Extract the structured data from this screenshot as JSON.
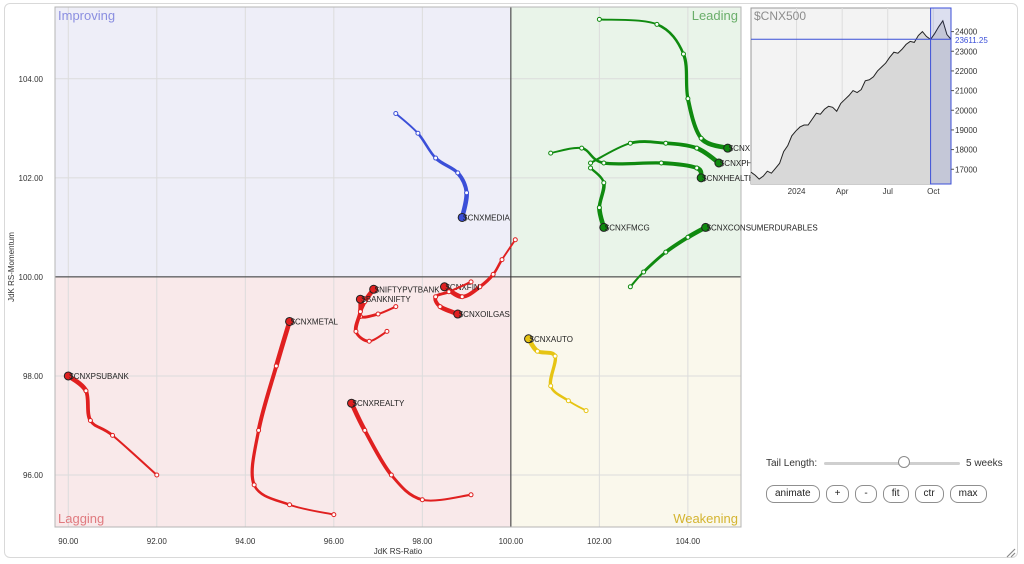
{
  "chart_data": [
    {
      "type": "scatter",
      "subtype": "relative-rotation-graph",
      "xlabel": "JdK RS-Ratio",
      "ylabel": "JdK RS-Momentum",
      "xlim": [
        89.7,
        105.2
      ],
      "ylim": [
        94.95,
        105.45
      ],
      "x_ticks": [
        "90.00",
        "92.00",
        "94.00",
        "96.00",
        "98.00",
        "100.00",
        "102.00",
        "104.00"
      ],
      "y_ticks": [
        "96.00",
        "98.00",
        "100.00",
        "102.00",
        "104.00"
      ],
      "grid": true,
      "center": [
        100,
        100
      ],
      "quadrants": [
        {
          "name": "Improving",
          "position": "top-left",
          "bg": "#eeeef8",
          "color": "#8a8ee0"
        },
        {
          "name": "Leading",
          "position": "top-right",
          "bg": "#e9f4e9",
          "color": "#6aae6a"
        },
        {
          "name": "Lagging",
          "position": "bottom-left",
          "bg": "#f9e9ea",
          "color": "#e07a7f"
        },
        {
          "name": "Weakening",
          "position": "bottom-right",
          "bg": "#faf8ec",
          "color": "#d4b430"
        }
      ],
      "series": [
        {
          "name": "$CNXMEDIA",
          "color": "#3b4fd8",
          "points": [
            [
              97.4,
              103.3
            ],
            [
              97.9,
              102.9
            ],
            [
              98.3,
              102.4
            ],
            [
              98.8,
              102.1
            ],
            [
              99.0,
              101.7
            ],
            [
              98.9,
              101.2
            ]
          ]
        },
        {
          "name": "$CNXIT",
          "color": "#0f8a0f",
          "points": [
            [
              102.0,
              105.2
            ],
            [
              103.3,
              105.1
            ],
            [
              103.9,
              104.5
            ],
            [
              104.0,
              103.6
            ],
            [
              104.3,
              102.8
            ],
            [
              104.9,
              102.6
            ]
          ]
        },
        {
          "name": "$CNXPHARMA",
          "color": "#0f8a0f",
          "points": [
            [
              101.8,
              102.3
            ],
            [
              102.7,
              102.7
            ],
            [
              103.5,
              102.7
            ],
            [
              104.2,
              102.6
            ],
            [
              104.7,
              102.3
            ]
          ]
        },
        {
          "name": "$CNXHEALTHCARE",
          "color": "#0f8a0f",
          "points": [
            [
              100.9,
              102.5
            ],
            [
              101.6,
              102.6
            ],
            [
              102.1,
              102.3
            ],
            [
              103.4,
              102.3
            ],
            [
              104.2,
              102.2
            ],
            [
              104.3,
              102.0
            ]
          ]
        },
        {
          "name": "$CNXFMCG",
          "color": "#0f8a0f",
          "points": [
            [
              101.8,
              102.2
            ],
            [
              102.1,
              101.9
            ],
            [
              102.0,
              101.4
            ],
            [
              102.1,
              101.0
            ]
          ]
        },
        {
          "name": "$CNXCONSUMERDURABLES",
          "color": "#0f8a0f",
          "points": [
            [
              102.7,
              99.8
            ],
            [
              103.0,
              100.1
            ],
            [
              103.5,
              100.5
            ],
            [
              104.0,
              100.8
            ],
            [
              104.4,
              101.0
            ]
          ]
        },
        {
          "name": "$CNXAUTO",
          "color": "#e6c413",
          "points": [
            [
              101.7,
              97.3
            ],
            [
              101.3,
              97.5
            ],
            [
              100.9,
              97.8
            ],
            [
              101.0,
              98.4
            ],
            [
              100.6,
              98.5
            ],
            [
              100.4,
              98.75
            ]
          ]
        },
        {
          "name": "$CNXFIN",
          "color": "#e02020",
          "points": [
            [
              100.1,
              100.75
            ],
            [
              99.8,
              100.35
            ],
            [
              99.6,
              100.05
            ],
            [
              99.3,
              99.8
            ],
            [
              98.9,
              99.6
            ],
            [
              98.5,
              99.8
            ]
          ]
        },
        {
          "name": "$CNXOILGAS",
          "color": "#e02020",
          "points": [
            [
              99.1,
              99.9
            ],
            [
              98.6,
              99.7
            ],
            [
              98.3,
              99.6
            ],
            [
              98.4,
              99.4
            ],
            [
              98.8,
              99.25
            ]
          ]
        },
        {
          "name": "$NIFTYPVTBANK",
          "color": "#e02020",
          "points": [
            [
              97.4,
              99.4
            ],
            [
              97.0,
              99.25
            ],
            [
              96.6,
              99.2
            ],
            [
              96.7,
              99.5
            ],
            [
              96.9,
              99.75
            ]
          ]
        },
        {
          "name": "$BANKNIFTY",
          "color": "#e02020",
          "points": [
            [
              97.2,
              98.9
            ],
            [
              96.8,
              98.7
            ],
            [
              96.5,
              98.9
            ],
            [
              96.6,
              99.3
            ],
            [
              96.6,
              99.55
            ]
          ]
        },
        {
          "name": "$CNXMETAL",
          "color": "#e02020",
          "points": [
            [
              96.0,
              95.2
            ],
            [
              95.0,
              95.4
            ],
            [
              94.2,
              95.8
            ],
            [
              94.3,
              96.9
            ],
            [
              94.7,
              98.2
            ],
            [
              95.0,
              99.1
            ]
          ]
        },
        {
          "name": "$CNXPSUBANK",
          "color": "#e02020",
          "points": [
            [
              92.0,
              96.0
            ],
            [
              91.0,
              96.8
            ],
            [
              90.5,
              97.1
            ],
            [
              90.4,
              97.7
            ],
            [
              90.0,
              98.0
            ]
          ]
        },
        {
          "name": "$CNXREALTY",
          "color": "#e02020",
          "points": [
            [
              99.1,
              95.6
            ],
            [
              98.0,
              95.5
            ],
            [
              97.3,
              96.0
            ],
            [
              96.7,
              96.9
            ],
            [
              96.4,
              97.45
            ]
          ]
        }
      ]
    },
    {
      "type": "area",
      "title": "$CNX500",
      "last_value_label": "23611.25",
      "last_value": 23611.25,
      "ylim": [
        16250,
        25200
      ],
      "y_ticks": [
        "24000",
        "23000",
        "22000",
        "21000",
        "20000",
        "19000",
        "18000",
        "17000"
      ],
      "x_labels": [
        "2024",
        "Apr",
        "Jul",
        "Oct"
      ],
      "values": [
        16850,
        16700,
        16500,
        16650,
        16900,
        16800,
        17050,
        17300,
        17900,
        18200,
        18700,
        18950,
        19150,
        19250,
        19250,
        19550,
        19850,
        19800,
        20050,
        20200,
        20150,
        19950,
        20350,
        20550,
        20750,
        21000,
        20900,
        21050,
        21500,
        21550,
        21700,
        22000,
        22200,
        22400,
        22700,
        22950,
        22900,
        23100,
        23350,
        23500,
        23450,
        23800,
        24000,
        23750,
        23600,
        23900,
        24250,
        24550,
        23850,
        23611.25
      ]
    }
  ],
  "controls": {
    "tail_label": "Tail Length:",
    "tail_value": "5 weeks",
    "tail_fraction": 0.6,
    "buttons": [
      "animate",
      "+",
      "-",
      "fit",
      "ctr",
      "max"
    ]
  }
}
